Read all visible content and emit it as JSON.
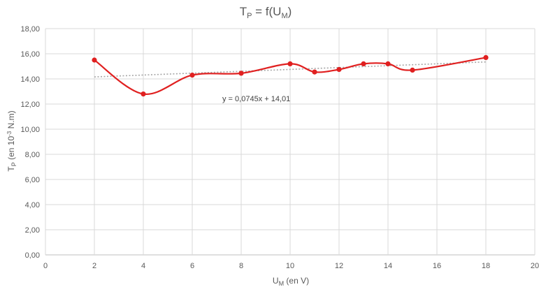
{
  "chart_data": {
    "type": "scatter",
    "title": {
      "main": "T",
      "sub1": "P",
      "mid": " = f(U",
      "sub2": "M",
      "end": ")"
    },
    "xlabel": {
      "main": "U",
      "sub": "M",
      "rest": " (en V)"
    },
    "ylabel": {
      "main": "T",
      "sub": "P",
      "mid": " (en 10",
      "sup": "-3",
      "rest": " N.m)"
    },
    "xlim": [
      0,
      20
    ],
    "ylim": [
      0,
      18
    ],
    "x_ticks": [
      "0",
      "2",
      "4",
      "6",
      "8",
      "10",
      "12",
      "14",
      "16",
      "18",
      "20"
    ],
    "y_ticks": [
      "0,00",
      "2,00",
      "4,00",
      "6,00",
      "8,00",
      "10,00",
      "12,00",
      "14,00",
      "16,00",
      "18,00"
    ],
    "grid": true,
    "series": [
      {
        "points": [
          {
            "x": 2,
            "y": 15.5
          },
          {
            "x": 4,
            "y": 12.8
          },
          {
            "x": 6,
            "y": 14.3
          },
          {
            "x": 8,
            "y": 14.45
          },
          {
            "x": 10,
            "y": 15.2
          },
          {
            "x": 11,
            "y": 14.55
          },
          {
            "x": 12,
            "y": 14.75
          },
          {
            "x": 13,
            "y": 15.2
          },
          {
            "x": 14,
            "y": 15.2
          },
          {
            "x": 15,
            "y": 14.7
          },
          {
            "x": 18,
            "y": 15.7
          }
        ],
        "line_style": "smooth",
        "color": "#e02020"
      }
    ],
    "trendline": {
      "slope": 0.0745,
      "intercept": 14.01,
      "x_range": [
        2,
        18
      ],
      "equation_label": "y = 0,0745x + 14,01",
      "color": "#a6a6a6"
    }
  }
}
